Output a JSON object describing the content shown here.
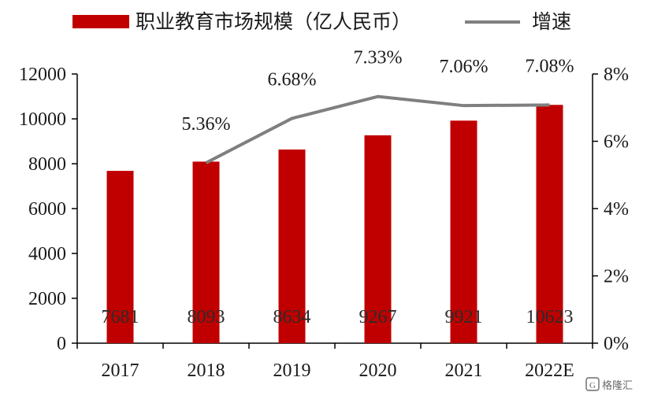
{
  "legend": {
    "bar_label": "职业教育市场规模（亿人民币）",
    "line_label": "增速"
  },
  "watermark": {
    "text": "格隆汇"
  },
  "colors": {
    "bar": "#c00000",
    "line": "#7f7f7f",
    "axis": "#000000"
  },
  "chart_data": {
    "type": "bar",
    "title": "",
    "categories": [
      "2017",
      "2018",
      "2019",
      "2020",
      "2021",
      "2022E"
    ],
    "series": [
      {
        "name": "职业教育市场规模（亿人民币）",
        "type": "bar",
        "axis": "left",
        "values": [
          7681,
          8093,
          8634,
          9267,
          9921,
          10623
        ],
        "labels": [
          "7681",
          "8093",
          "8634",
          "9267",
          "9921",
          "10623"
        ]
      },
      {
        "name": "增速",
        "type": "line",
        "axis": "right",
        "values": [
          null,
          5.36,
          6.68,
          7.33,
          7.06,
          7.08
        ],
        "labels": [
          "",
          "5.36%",
          "6.68%",
          "7.33%",
          "7.06%",
          "7.08%"
        ]
      }
    ],
    "y_left": {
      "min": 0,
      "max": 12000,
      "ticks": [
        0,
        2000,
        4000,
        6000,
        8000,
        10000,
        12000
      ],
      "tick_labels": [
        "0",
        "2000",
        "4000",
        "6000",
        "8000",
        "10000",
        "12000"
      ]
    },
    "y_right": {
      "min": 0,
      "max": 8,
      "ticks": [
        0,
        2,
        4,
        6,
        8
      ],
      "tick_labels": [
        "0%",
        "2%",
        "4%",
        "6%",
        "8%"
      ]
    },
    "legend_position": "top",
    "grid": false
  }
}
